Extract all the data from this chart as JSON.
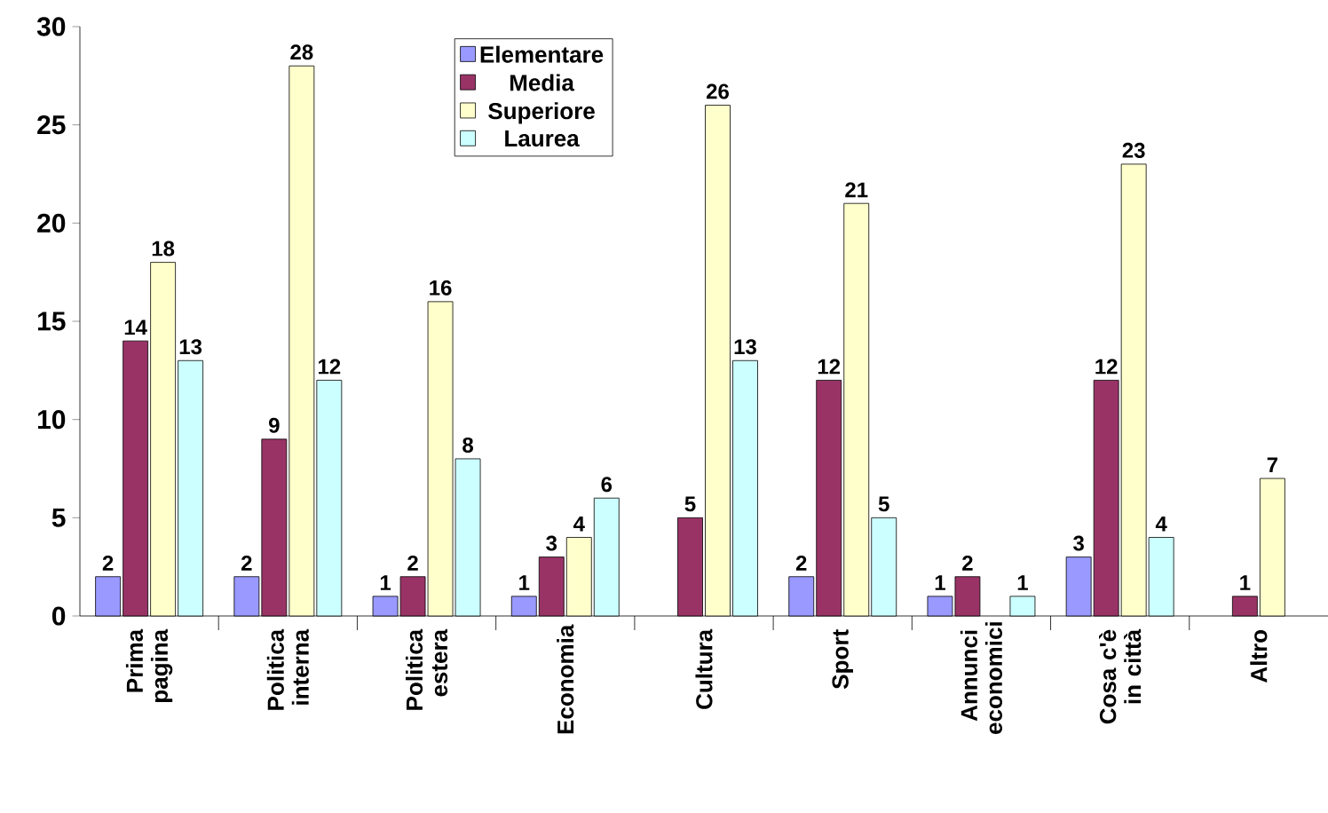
{
  "chart_data": {
    "type": "bar",
    "categories": [
      "Prima pagina",
      "Politica interna",
      "Politica estera",
      "Economia",
      "Cultura",
      "Sport",
      "Annunci economici",
      "Cosa c'è in città",
      "Altro"
    ],
    "series": [
      {
        "name": "Elementare",
        "color": "#9999ff",
        "values": [
          2,
          2,
          1,
          1,
          null,
          2,
          1,
          3,
          null
        ]
      },
      {
        "name": "Media",
        "color": "#993366",
        "values": [
          14,
          9,
          2,
          3,
          5,
          12,
          2,
          12,
          1
        ]
      },
      {
        "name": "Superiore",
        "color": "#ffffcc",
        "values": [
          18,
          28,
          16,
          4,
          26,
          21,
          null,
          23,
          7
        ]
      },
      {
        "name": "Laurea",
        "color": "#ccffff",
        "values": [
          13,
          12,
          8,
          6,
          13,
          5,
          1,
          4,
          null
        ]
      }
    ],
    "ylim": [
      0,
      30
    ],
    "yticks": [
      0,
      5,
      10,
      15,
      20,
      25,
      30
    ],
    "data_labels": true,
    "legend": "top",
    "grid": false
  }
}
